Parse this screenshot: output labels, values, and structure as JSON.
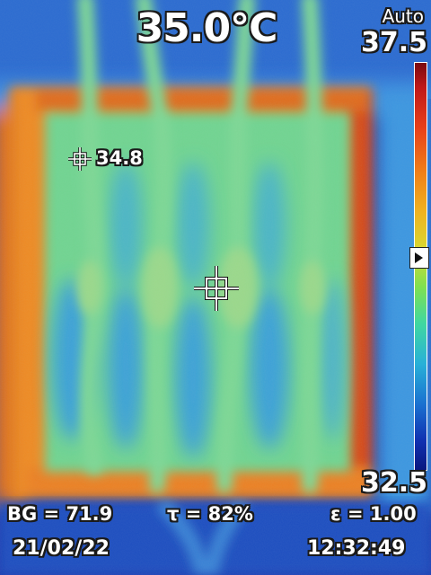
{
  "readout": {
    "center_temp": "35.0°C",
    "spot_temp": "34.8"
  },
  "scale": {
    "mode": "Auto",
    "max": "37.5",
    "min": "32.5",
    "level_fraction": 0.48
  },
  "parameters": {
    "bg": "BG = 71.9",
    "tau": "τ = 82%",
    "emissivity": "ε = 1.00"
  },
  "status": {
    "date": "21/02/22",
    "time": "12:32:49"
  },
  "icons": {
    "center_spot": "crosshair-icon",
    "secondary_spot": "crosshair-icon",
    "level_marker": "triangle-right-icon"
  },
  "colors": {
    "cold": "#1a3aa8",
    "cool": "#38a8e0",
    "mid": "#6cd896",
    "warm": "#f08a22",
    "hot": "#d83a1a"
  }
}
